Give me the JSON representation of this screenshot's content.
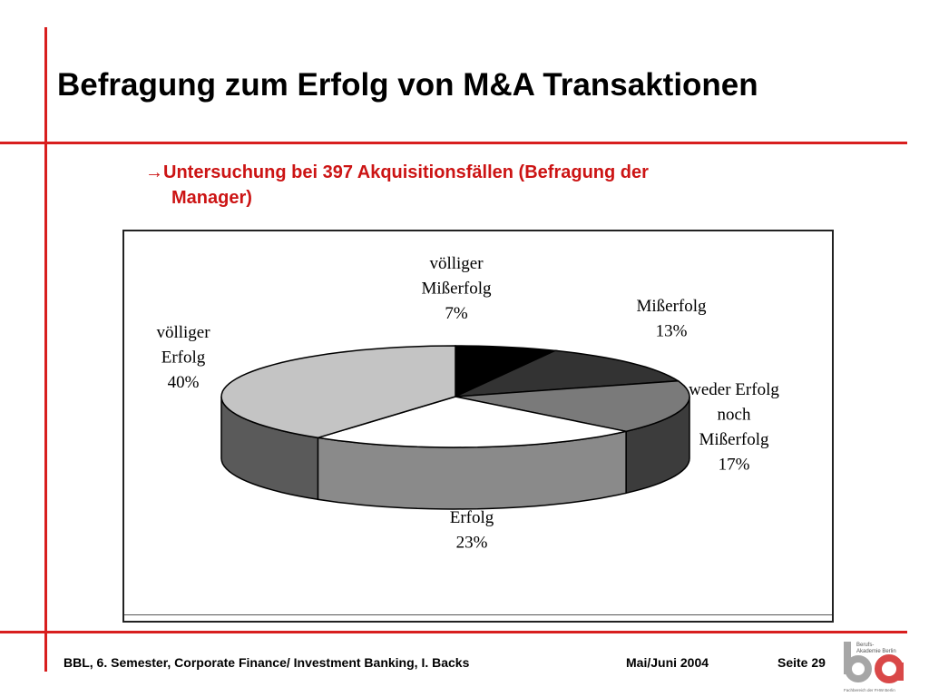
{
  "slide": {
    "title": "Befragung zum Erfolg von M&A Transaktionen",
    "subtitle_line1": "→Untersuchung bei 397 Akquisitionsfällen (Befragung der",
    "subtitle_line2": "Manager)"
  },
  "chart_data": {
    "type": "pie",
    "style": "3d",
    "slices": [
      {
        "label_lines": [
          "völliger",
          "Mißerfolg",
          "7%"
        ],
        "value": 7,
        "color": "#000000",
        "side": "#000000"
      },
      {
        "label_lines": [
          "Mißerfolg",
          "13%"
        ],
        "value": 13,
        "color": "#333333",
        "side": "#262626"
      },
      {
        "label_lines": [
          "weder Erfolg",
          "noch",
          "Mißerfolg",
          "17%"
        ],
        "value": 17,
        "color": "#7a7a7a",
        "side": "#3c3c3c"
      },
      {
        "label_lines": [
          "Erfolg",
          "23%"
        ],
        "value": 23,
        "color": "#ffffff",
        "side": "#8a8a8a"
      },
      {
        "label_lines": [
          "völliger",
          "Erfolg",
          "40%"
        ],
        "value": 40,
        "color": "#c4c4c4",
        "side": "#5a5a5a"
      }
    ]
  },
  "footer": {
    "course": "BBL, 6. Semester, Corporate Finance/ Investment Banking,  I. Backs",
    "date": "Mai/Juni 2004",
    "page": "Seite 29",
    "logo_text_1": "Berufs-",
    "logo_text_2": "Akademie Berlin",
    "logo_caption": "Fachbereich der FHW Berlin"
  }
}
